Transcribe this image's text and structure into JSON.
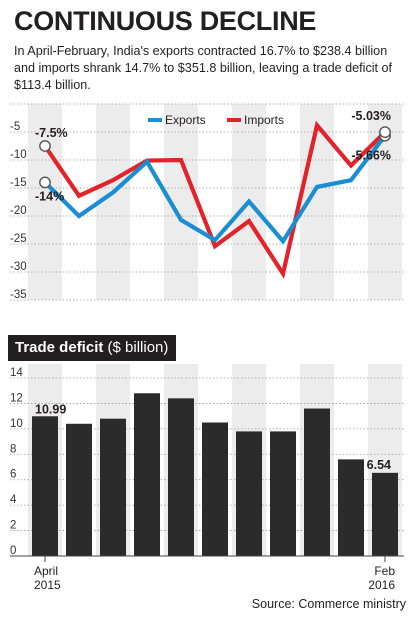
{
  "title": "CONTINUOUS DECLINE",
  "subtitle": "In April-February, India's exports contracted 16.7% to $238.4 billion and imports shrank 14.7% to $351.8 billion, leaving a trade deficit of $113.4 billion.",
  "source": "Source: Commerce ministry",
  "colors": {
    "exports": "#1b8ed3",
    "imports": "#e2232a",
    "bar": "#2b2b2b",
    "band": "#ececec"
  },
  "chart_data": [
    {
      "type": "line",
      "title": "",
      "ylim": [
        -35,
        0
      ],
      "yticks": [
        "-5",
        "-10",
        "-15",
        "-20",
        "-25",
        "-30",
        "-35"
      ],
      "legend_position": "top-center",
      "series": [
        {
          "name": "Exports",
          "values": [
            -14,
            -20.0,
            -15.8,
            -10.3,
            -20.7,
            -24.3,
            -17.4,
            -24.5,
            -14.8,
            -13.6,
            -5.66
          ]
        },
        {
          "name": "Imports",
          "values": [
            -7.5,
            -16.4,
            -13.6,
            -10.1,
            -10.0,
            -25.4,
            -20.9,
            -30.3,
            -3.8,
            -11.0,
            -5.03
          ]
        }
      ],
      "data_labels": {
        "exports_first": "-14%",
        "exports_last": "-5.66%",
        "imports_first": "-7.5%",
        "imports_last": "-5.03%"
      }
    },
    {
      "type": "bar",
      "title": "Trade deficit",
      "unit_label": "($ billion)",
      "ylim": [
        0,
        14
      ],
      "yticks": [
        "0",
        "2",
        "4",
        "6",
        "8",
        "10",
        "12",
        "14"
      ],
      "values": [
        10.99,
        10.4,
        10.8,
        12.8,
        12.4,
        10.5,
        9.8,
        9.8,
        11.6,
        7.6,
        6.54
      ],
      "data_labels": {
        "first": "10.99",
        "last": "6.54"
      },
      "x_tick_labels": {
        "first": {
          "month": "April",
          "year": "2015"
        },
        "last": {
          "month": "Feb",
          "year": "2016"
        }
      }
    }
  ]
}
